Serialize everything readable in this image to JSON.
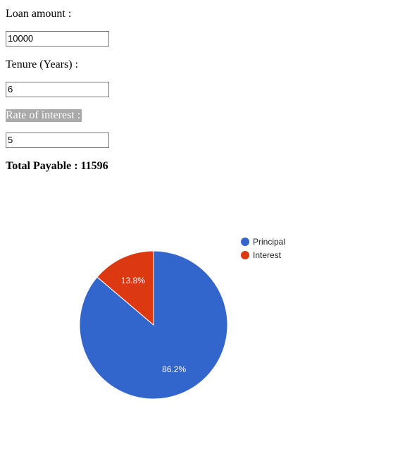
{
  "form": {
    "loan_amount_label": "Loan amount :",
    "loan_amount_value": "10000",
    "tenure_label": "Tenure (Years) :",
    "tenure_value": "6",
    "rate_label": "Rate of interest :",
    "rate_value": "5",
    "total_label": "Total Payable : 11596"
  },
  "chart_data": {
    "type": "pie",
    "slices": [
      {
        "name": "Principal",
        "value": 86.2,
        "label": "86.2%",
        "color": "#3366cc"
      },
      {
        "name": "Interest",
        "value": 13.8,
        "label": "13.8%",
        "color": "#dc3912"
      }
    ],
    "legend_position": "right"
  }
}
